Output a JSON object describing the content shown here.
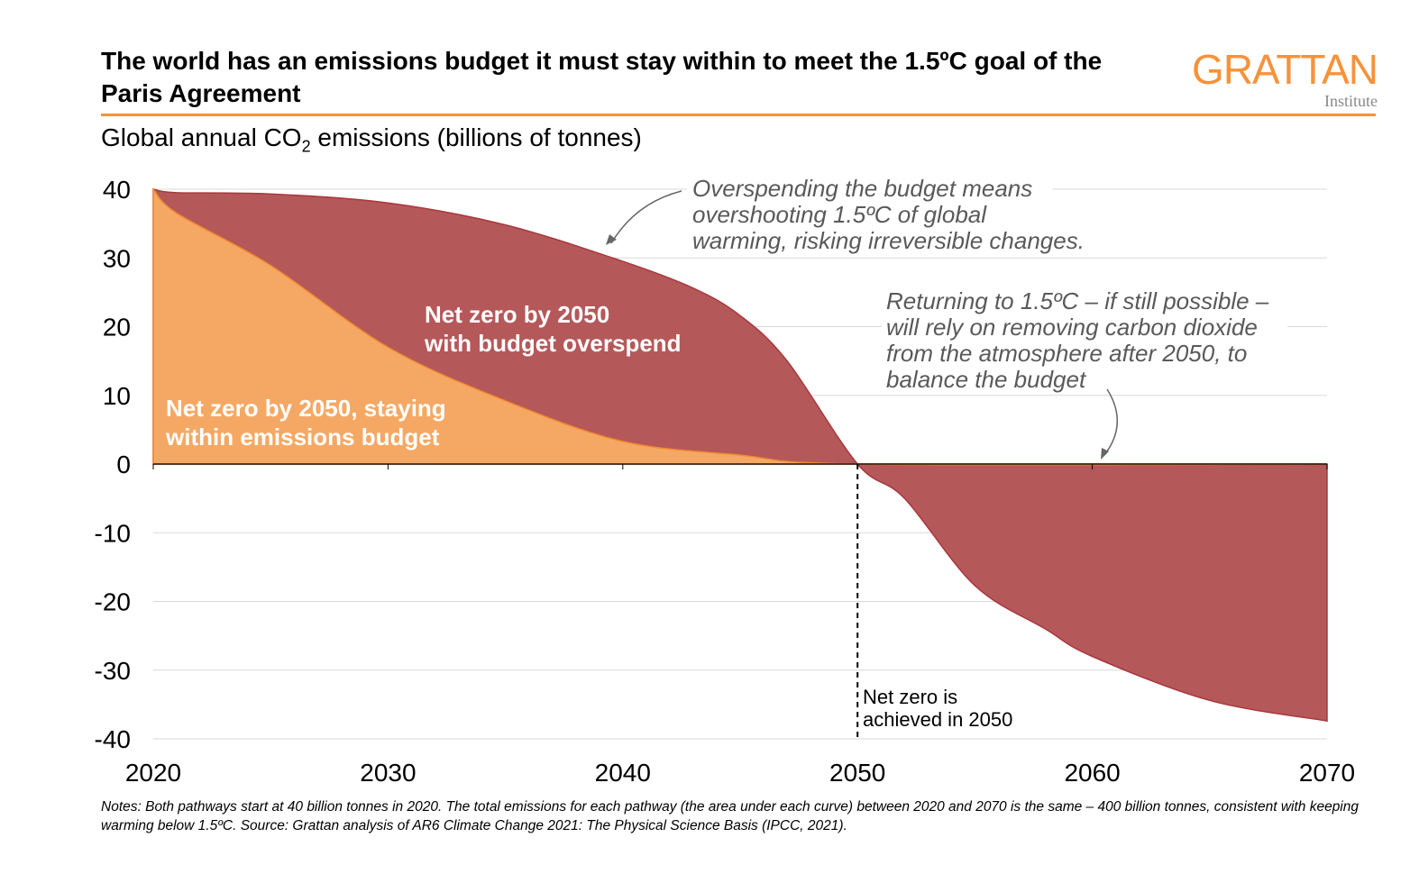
{
  "title": "The world has an emissions budget it must stay within to meet the 1.5ºC goal of the Paris Agreement",
  "logo": {
    "word": "GRATTAN",
    "sub": "Institute"
  },
  "subtitle_pre": "Global annual CO",
  "subtitle_sub": "2",
  "subtitle_post": " emissions (billions of tonnes)",
  "notes": "Notes: Both pathways start at 40 billion tonnes in 2020. The total emissions for each pathway (the area under each curve) between 2020 and 2070 is the same – 400 billion tonnes, consistent with keeping warming below 1.5ºC. Source: Grattan analysis of AR6 Climate Change 2021: The Physical Science Basis (IPCC, 2021).",
  "colors": {
    "overspend": "#b5585a",
    "within": "#f5a864",
    "orange": "#f7923a"
  },
  "chart_data": {
    "type": "area",
    "xlim": [
      2020,
      2070
    ],
    "ylim": [
      -40,
      40
    ],
    "xticks": [
      2020,
      2030,
      2040,
      2050,
      2060,
      2070
    ],
    "yticks": [
      40,
      30,
      20,
      10,
      0,
      -10,
      -20,
      -30,
      -40
    ],
    "series": [
      {
        "name": "Net zero by 2050 with budget overspend",
        "label_lines": [
          "Net zero by 2050",
          "with budget overspend"
        ],
        "x": [
          2020,
          2021,
          2025,
          2030,
          2035,
          2040,
          2043,
          2045,
          2047,
          2050,
          2052,
          2055,
          2058,
          2060,
          2065,
          2070
        ],
        "y": [
          40,
          39.5,
          39.3,
          38,
          34.8,
          29.5,
          25.6,
          21.6,
          15,
          0,
          -5,
          -17.7,
          -24,
          -28,
          -34.4,
          -37.4
        ]
      },
      {
        "name": "Net zero by 2050, staying within emissions budget",
        "label_lines": [
          "Net zero by 2050, staying",
          "within emissions budget"
        ],
        "x": [
          2020,
          2021,
          2025,
          2030,
          2035,
          2040,
          2045,
          2050,
          2070
        ],
        "y": [
          40,
          36.5,
          28.9,
          17,
          9.2,
          3.3,
          1.3,
          0,
          0
        ]
      }
    ],
    "annotations": [
      {
        "lines": [
          "Overspending the budget means",
          "overshooting 1.5ºC of global",
          "warming, risking irreversible changes."
        ]
      },
      {
        "lines": [
          "Returning to 1.5ºC – if still possible –",
          "will rely on removing carbon dioxide",
          "from the atmosphere after 2050, to",
          "balance the budget"
        ]
      },
      {
        "lines": [
          "Net zero is",
          "achieved in 2050"
        ]
      }
    ]
  }
}
